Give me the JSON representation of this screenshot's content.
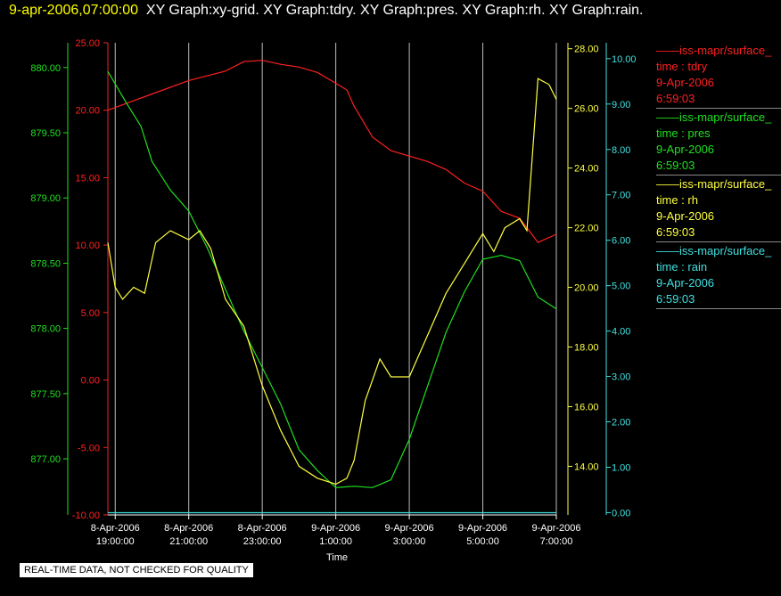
{
  "header": {
    "timestamp": "9-apr-2006,07:00:00",
    "titles": "XY Graph:xy-grid.  XY Graph:tdry.  XY Graph:pres.  XY Graph:rh.  XY Graph:rain."
  },
  "notice": "REAL-TIME DATA, NOT CHECKED FOR QUALITY",
  "legend": [
    {
      "name": "iss-mapr/surface_",
      "var": "time : tdry",
      "date": "9-Apr-2006",
      "time": "6:59:03",
      "color": "#ff2020"
    },
    {
      "name": "iss-mapr/surface_",
      "var": "time : pres",
      "date": "9-Apr-2006",
      "time": "6:59:03",
      "color": "#20e020"
    },
    {
      "name": "iss-mapr/surface_",
      "var": "time : rh",
      "date": "9-Apr-2006",
      "time": "6:59:03",
      "color": "#ffff40"
    },
    {
      "name": "iss-mapr/surface_",
      "var": "time : rain",
      "date": "9-Apr-2006",
      "time": "6:59:03",
      "color": "#40e0e0"
    }
  ],
  "chart_data": {
    "type": "line",
    "xlabel": "Time",
    "x_range_hours": [
      18.8,
      31.0
    ],
    "x_ticks": [
      {
        "h": 19,
        "date": "8-Apr-2006",
        "time": "19:00:00"
      },
      {
        "h": 21,
        "date": "8-Apr-2006",
        "time": "21:00:00"
      },
      {
        "h": 23,
        "date": "8-Apr-2006",
        "time": "23:00:00"
      },
      {
        "h": 25,
        "date": "9-Apr-2006",
        "time": "1:00:00"
      },
      {
        "h": 27,
        "date": "9-Apr-2006",
        "time": "3:00:00"
      },
      {
        "h": 29,
        "date": "9-Apr-2006",
        "time": "5:00:00"
      },
      {
        "h": 31,
        "date": "9-Apr-2006",
        "time": "7:00:00"
      }
    ],
    "grid": "vertical",
    "axes": {
      "tdry": {
        "color": "#ff2020",
        "range": [
          -10,
          25
        ],
        "ticks": [
          "25.00",
          "20.00",
          "15.00",
          "10.00",
          "5.00",
          "0.00",
          "-5.00",
          "-10.00"
        ]
      },
      "pres": {
        "color": "#20e020",
        "range": [
          876.57,
          880.19
        ],
        "ticks": [
          "880.00",
          "879.50",
          "879.00",
          "878.50",
          "878.00",
          "877.50",
          "877.00"
        ]
      },
      "rh": {
        "color": "#ffff40",
        "range": [
          12.37,
          28.2
        ],
        "ticks": [
          "28.00",
          "26.00",
          "24.00",
          "22.00",
          "20.00",
          "18.00",
          "16.00",
          "14.00"
        ]
      },
      "rain": {
        "color": "#40e0e0",
        "range": [
          -0.05,
          10.35
        ],
        "ticks": [
          "10.00",
          "9.00",
          "8.00",
          "7.00",
          "6.00",
          "5.00",
          "4.00",
          "3.00",
          "2.00",
          "1.00",
          "0.00"
        ]
      }
    },
    "series": [
      {
        "name": "tdry",
        "axis": "tdry",
        "x": [
          18.8,
          19.5,
          20.0,
          21.0,
          22.0,
          22.5,
          23.0,
          23.5,
          24.0,
          24.5,
          25.0,
          25.3,
          25.5,
          26.0,
          26.5,
          27.0,
          27.5,
          28.0,
          28.5,
          29.0,
          29.5,
          30.0,
          30.5,
          31.0
        ],
        "values": [
          20.0,
          20.7,
          21.2,
          22.2,
          22.9,
          23.6,
          23.7,
          23.4,
          23.2,
          22.8,
          22.0,
          21.5,
          20.3,
          18.0,
          17.0,
          16.6,
          16.2,
          15.6,
          14.6,
          14.0,
          12.5,
          12.0,
          10.2,
          10.8
        ]
      },
      {
        "name": "pres",
        "axis": "pres",
        "x": [
          18.8,
          19.3,
          19.7,
          20.0,
          20.5,
          21.0,
          21.5,
          22.0,
          22.5,
          23.0,
          23.5,
          24.0,
          24.5,
          25.0,
          25.5,
          26.0,
          26.5,
          27.0,
          27.5,
          28.0,
          28.5,
          29.0,
          29.5,
          30.0,
          30.5,
          31.0
        ],
        "values": [
          879.97,
          879.73,
          879.55,
          879.28,
          879.06,
          878.9,
          878.62,
          878.3,
          877.98,
          877.7,
          877.42,
          877.07,
          876.91,
          876.78,
          876.79,
          876.78,
          876.84,
          877.15,
          877.56,
          877.97,
          878.28,
          878.53,
          878.56,
          878.52,
          878.24,
          878.15
        ]
      },
      {
        "name": "rh",
        "axis": "rh",
        "x": [
          18.8,
          19.0,
          19.2,
          19.5,
          19.8,
          20.1,
          20.5,
          21.0,
          21.3,
          21.6,
          22.0,
          22.5,
          23.0,
          23.5,
          24.0,
          24.5,
          25.0,
          25.3,
          25.5,
          25.8,
          26.0,
          26.2,
          26.5,
          27.0,
          27.5,
          28.0,
          28.5,
          29.0,
          29.3,
          29.6,
          30.0,
          30.2,
          30.5,
          30.8,
          31.0
        ],
        "values": [
          21.5,
          20.0,
          19.6,
          20.0,
          19.8,
          21.5,
          21.9,
          21.6,
          21.9,
          21.3,
          19.6,
          18.7,
          16.7,
          15.2,
          14.0,
          13.6,
          13.4,
          13.6,
          14.2,
          16.2,
          16.9,
          17.6,
          17.0,
          17.0,
          18.4,
          19.8,
          20.8,
          21.8,
          21.2,
          22.0,
          22.3,
          21.9,
          27.0,
          26.8,
          26.3
        ]
      },
      {
        "name": "rain",
        "axis": "rain",
        "x": [
          18.8,
          31.0
        ],
        "values": [
          0,
          0
        ]
      }
    ]
  }
}
